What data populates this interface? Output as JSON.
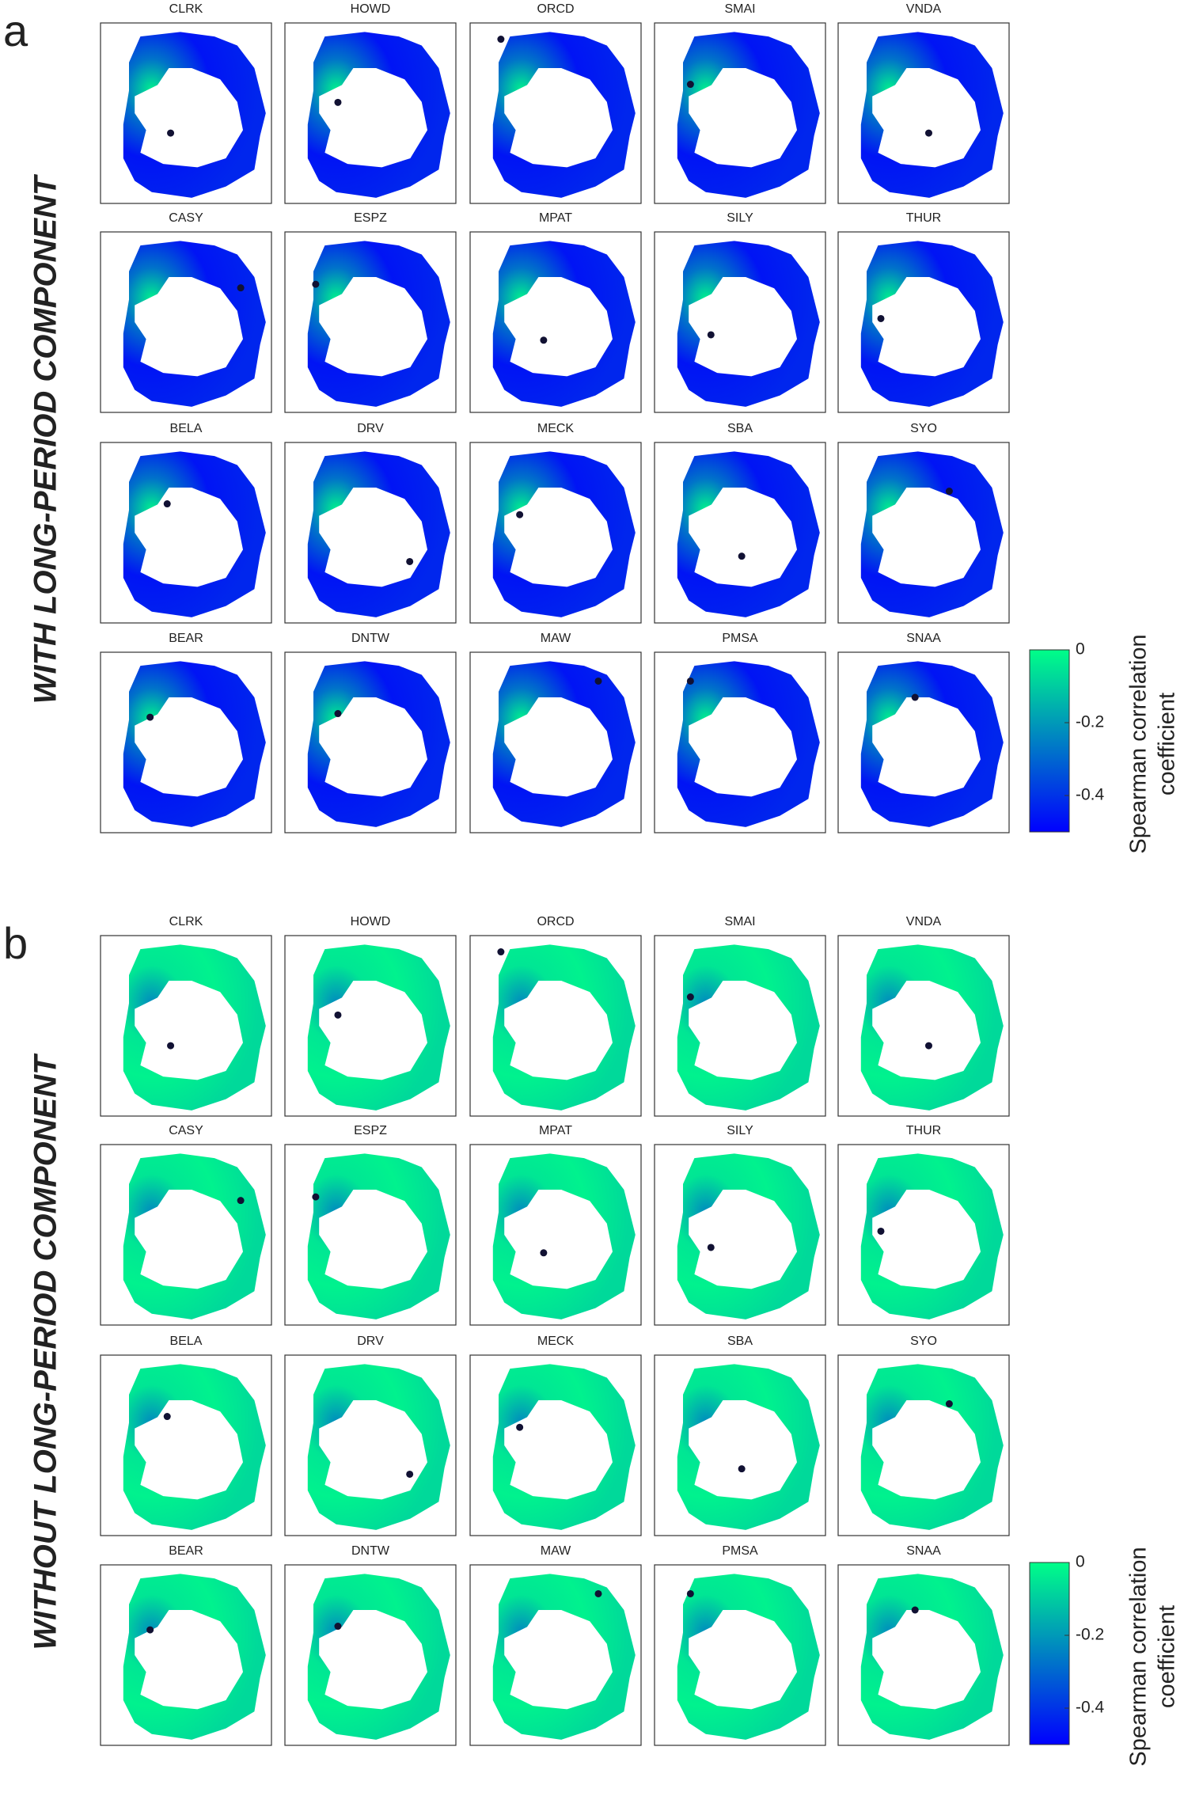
{
  "panels": [
    {
      "label": "a",
      "row_label": "WITH LONG-PERIOD COMPONENT",
      "stations": [
        [
          "CLRK",
          "HOWD",
          "ORCD",
          "SMAI",
          "VNDA"
        ],
        [
          "CASY",
          "ESPZ",
          "MPAT",
          "SILY",
          "THUR"
        ],
        [
          "BELA",
          "DRV",
          "MECK",
          "SBA",
          "SYO"
        ],
        [
          "BEAR",
          "DNTW",
          "MAW",
          "PMSA",
          "SNAA"
        ]
      ],
      "colorbar": {
        "title": [
          "Spearman correlation",
          "coefficient"
        ],
        "lim": [
          -0.5,
          0
        ],
        "ticks": [
          0,
          -0.2,
          -0.4
        ],
        "colors": [
          "#0000ff",
          "#00ff88"
        ]
      }
    },
    {
      "label": "b",
      "row_label": "WITHOUT LONG-PERIOD COMPONENT",
      "stations": [
        [
          "CLRK",
          "HOWD",
          "ORCD",
          "SMAI",
          "VNDA"
        ],
        [
          "CASY",
          "ESPZ",
          "MPAT",
          "SILY",
          "THUR"
        ],
        [
          "BELA",
          "DRV",
          "MECK",
          "SBA",
          "SYO"
        ],
        [
          "BEAR",
          "DNTW",
          "MAW",
          "PMSA",
          "SNAA"
        ]
      ],
      "colorbar": {
        "title": [
          "Spearman correlation",
          "coefficient"
        ],
        "lim": [
          -0.5,
          0
        ],
        "ticks": [
          0,
          -0.2,
          -0.4
        ],
        "colors": [
          "#0000ff",
          "#00ff88"
        ]
      }
    }
  ]
}
